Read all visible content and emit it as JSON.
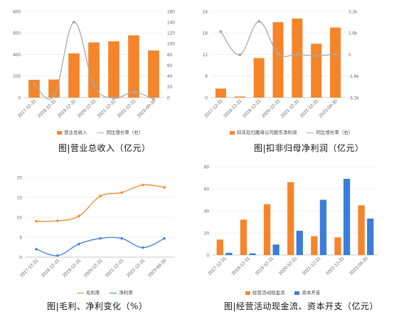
{
  "colors": {
    "orange": "#f5852a",
    "gray": "#a9a9a9",
    "blue": "#3b7dd8",
    "grid": "#e2e2e2"
  },
  "chart_data": [
    {
      "type": "bar",
      "caption": "图|营业总收入（亿元）",
      "categories": [
        "2017-12-31",
        "2018-12-31",
        "2019-12-31",
        "2020-12-31",
        "2021-12-31",
        "2022-12-31",
        "2023-09-30"
      ],
      "series": [
        {
          "name": "营业总收入",
          "kind": "bar",
          "axis": "left",
          "values": [
            165,
            168,
            410,
            512,
            522,
            578,
            438
          ]
        },
        {
          "name": "同比增长率（右）",
          "kind": "line",
          "axis": "right",
          "values": [
            25,
            3,
            140,
            23,
            -1,
            10,
            -3
          ]
        }
      ],
      "y_left": {
        "ticks": [
          0,
          200,
          400,
          600,
          800
        ],
        "lim": [
          0,
          800
        ]
      },
      "y_right": {
        "ticks": [
          0,
          20,
          40,
          60,
          80,
          100,
          120,
          140,
          160
        ],
        "lim": [
          0,
          160
        ]
      },
      "grid": true,
      "legend": "bottom"
    },
    {
      "type": "bar",
      "caption": "图|扣非归母净利润（亿元）",
      "categories": [
        "2017-12-31",
        "2018-12-31",
        "2019-12-31",
        "2020-12-31",
        "2021-12-31",
        "2022-12-31",
        "2023-09-30"
      ],
      "series": [
        {
          "name": "扣非后归属母公司股东净利润",
          "kind": "bar",
          "axis": "left",
          "values": [
            2.5,
            0.3,
            11,
            21,
            22,
            15,
            19.5
          ]
        },
        {
          "name": "同比增长率（右）",
          "kind": "line",
          "axis": "right",
          "values": [
            1700,
            -20,
            2450,
            50,
            0,
            -100,
            20
          ]
        }
      ],
      "y_left": {
        "ticks": [
          0,
          6,
          12,
          18,
          24
        ],
        "lim": [
          0,
          24
        ]
      },
      "y_right": {
        "ticks": [
          -3200,
          -1600,
          0,
          1600,
          3200
        ],
        "tick_labels": [
          "-3.2k",
          "-1.6k",
          "0",
          "1.6k",
          "3.2k"
        ],
        "lim": [
          -3200,
          3200
        ]
      },
      "grid": true,
      "legend": "bottom"
    },
    {
      "type": "line",
      "caption": "图|毛利、净利变化（%）",
      "categories": [
        "2017-12-31",
        "2018-12-31",
        "2019-12-31",
        "2020-12-31",
        "2021-12-31",
        "2022-12-31",
        "2023-09-30"
      ],
      "series": [
        {
          "name": "毛利率",
          "values": [
            9,
            9.1,
            10.3,
            15.3,
            16.2,
            18.1,
            17.5
          ]
        },
        {
          "name": "净利率",
          "values": [
            2,
            0.4,
            3.3,
            4.7,
            4.7,
            2.4,
            4.7
          ]
        }
      ],
      "y_left": {
        "ticks": [
          0,
          5,
          10,
          15,
          20
        ],
        "lim": [
          0,
          20
        ]
      },
      "grid": true,
      "legend": "bottom"
    },
    {
      "type": "bar",
      "caption": "图|经营活动现金流、资本开支（亿元）",
      "categories": [
        "2017-12-31",
        "2018-12-31",
        "2019-12-31",
        "2020-12-31",
        "2021-12-31",
        "2022-12-31",
        "2023-09-30"
      ],
      "series": [
        {
          "name": "经营活动现金流",
          "values": [
            14,
            32,
            46,
            66,
            17,
            16,
            45
          ]
        },
        {
          "name": "资本开支",
          "values": [
            2,
            1.5,
            9.5,
            22,
            50,
            69,
            33
          ]
        }
      ],
      "y_left": {
        "ticks": [
          0,
          20,
          40,
          60,
          80
        ],
        "lim": [
          0,
          80
        ]
      },
      "grid": true,
      "legend": "bottom"
    }
  ]
}
